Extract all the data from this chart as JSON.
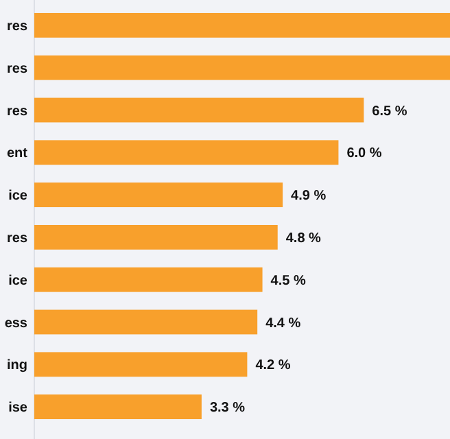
{
  "chart_data": {
    "type": "bar",
    "orientation": "horizontal",
    "categories": [
      "res",
      "res",
      "res",
      "ent",
      "ice",
      "res",
      "ice",
      "ess",
      "ing",
      "ise"
    ],
    "values": [
      8.2,
      8.2,
      6.5,
      6.0,
      4.9,
      4.8,
      4.5,
      4.4,
      4.2,
      3.3
    ],
    "value_labels": [
      null,
      null,
      "6.5 %",
      "6.0 %",
      "4.9 %",
      "4.8 %",
      "4.5 %",
      "4.4 %",
      "4.2 %",
      "3.3 %"
    ],
    "color": "#f8a02c",
    "xlim": [
      0,
      8.2
    ],
    "tick_labels": "y"
  }
}
